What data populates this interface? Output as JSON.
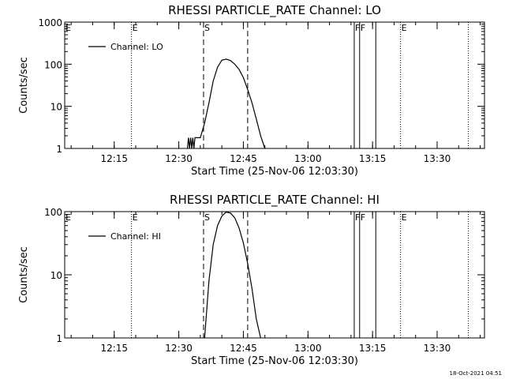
{
  "footer": {
    "timestamp": "18-Oct-2021 04:51"
  },
  "colors": {
    "background": "#ffffff",
    "ink": "#000000"
  },
  "chart_data": [
    {
      "type": "line",
      "title": "RHESSI PARTICLE_RATE Channel: LO",
      "xlabel": "Start Time (25-Nov-06 12:03:30)",
      "ylabel": "Counts/sec",
      "y_scale": "log",
      "xlim": [
        "12:03:30",
        "13:41:00"
      ],
      "ylim": [
        1,
        1000
      ],
      "x_ticks": [
        "12:15",
        "12:30",
        "12:45",
        "13:00",
        "13:15",
        "13:30"
      ],
      "y_ticks": [
        {
          "value": 1,
          "label": "1"
        },
        {
          "value": 10,
          "label": "10"
        },
        {
          "value": 100,
          "label": "100"
        },
        {
          "value": 1000,
          "label": "1000"
        }
      ],
      "grid": false,
      "legend": {
        "position": "top-left",
        "entries": [
          "Channel: LO"
        ]
      },
      "series": [
        {
          "name": "Channel: LO",
          "x": [
            "12:32:00",
            "12:32:15",
            "12:32:30",
            "12:32:45",
            "12:33:00",
            "12:33:15",
            "12:33:30",
            "12:33:45",
            "12:34:00",
            "12:34:30",
            "12:35:00",
            "12:36:00",
            "12:37:00",
            "12:38:00",
            "12:39:00",
            "12:40:00",
            "12:41:00",
            "12:42:00",
            "12:43:00",
            "12:44:00",
            "12:45:00",
            "12:46:00",
            "12:47:00",
            "12:48:00",
            "12:49:00",
            "12:50:00"
          ],
          "y": [
            1,
            1.8,
            1,
            1.8,
            1,
            1.8,
            1,
            1.8,
            1.8,
            1.8,
            1.8,
            4,
            12,
            40,
            85,
            125,
            132,
            122,
            100,
            75,
            48,
            25,
            12,
            5,
            2,
            1
          ]
        }
      ],
      "vlines": [
        {
          "x": "12:19:00",
          "style": "dotted",
          "label": "E"
        },
        {
          "x": "12:35:45",
          "style": "dashed",
          "label": "S"
        },
        {
          "x": "12:46:00",
          "style": "dashed",
          "label": ""
        },
        {
          "x": "13:10:45",
          "style": "solid",
          "label": "F"
        },
        {
          "x": "13:12:00",
          "style": "solid",
          "label": "F"
        },
        {
          "x": "13:15:45",
          "style": "solid",
          "label": ""
        },
        {
          "x": "13:21:30",
          "style": "dotted",
          "label": "E"
        },
        {
          "x": "13:37:15",
          "style": "dotted",
          "label": ""
        }
      ],
      "corner_labels": {
        "top_left": "E"
      }
    },
    {
      "type": "line",
      "title": "RHESSI PARTICLE_RATE Channel: HI",
      "xlabel": "Start Time (25-Nov-06 12:03:30)",
      "ylabel": "Counts/sec",
      "y_scale": "log",
      "xlim": [
        "12:03:30",
        "13:41:00"
      ],
      "ylim": [
        1,
        100
      ],
      "x_ticks": [
        "12:15",
        "12:30",
        "12:45",
        "13:00",
        "13:15",
        "13:30"
      ],
      "y_ticks": [
        {
          "value": 1,
          "label": "1"
        },
        {
          "value": 10,
          "label": "10"
        },
        {
          "value": 100,
          "label": "100"
        }
      ],
      "grid": false,
      "legend": {
        "position": "top-left",
        "entries": [
          "Channel: HI"
        ]
      },
      "series": [
        {
          "name": "Channel: HI",
          "x": [
            "12:36:00",
            "12:37:00",
            "12:38:00",
            "12:39:00",
            "12:40:00",
            "12:41:00",
            "12:42:00",
            "12:43:00",
            "12:44:00",
            "12:45:00",
            "12:46:00",
            "12:47:00",
            "12:48:00",
            "12:49:00"
          ],
          "y": [
            1,
            8,
            30,
            60,
            85,
            98,
            95,
            80,
            55,
            32,
            15,
            6,
            2,
            1
          ]
        }
      ],
      "vlines": [
        {
          "x": "12:19:00",
          "style": "dotted",
          "label": "E"
        },
        {
          "x": "12:35:45",
          "style": "dashed",
          "label": "S"
        },
        {
          "x": "12:46:00",
          "style": "dashed",
          "label": ""
        },
        {
          "x": "13:10:45",
          "style": "solid",
          "label": "F"
        },
        {
          "x": "13:12:00",
          "style": "solid",
          "label": "F"
        },
        {
          "x": "13:15:45",
          "style": "solid",
          "label": ""
        },
        {
          "x": "13:21:30",
          "style": "dotted",
          "label": "E"
        },
        {
          "x": "13:37:15",
          "style": "dotted",
          "label": ""
        }
      ],
      "corner_labels": {
        "top_left": "E"
      }
    }
  ]
}
